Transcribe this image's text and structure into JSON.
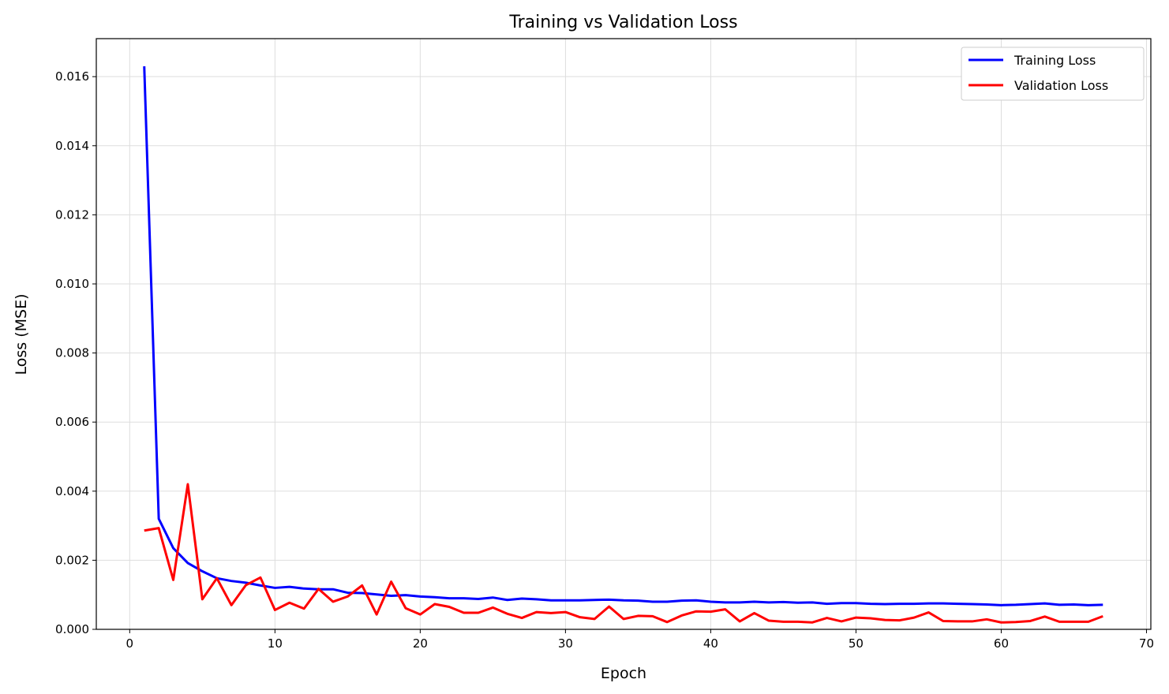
{
  "chart_data": {
    "type": "line",
    "title": "Training vs Validation Loss",
    "xlabel": "Epoch",
    "ylabel": "Loss (MSE)",
    "xlim": [
      -2.3,
      70.3
    ],
    "ylim": [
      0,
      0.0171
    ],
    "xticks": [
      0,
      10,
      20,
      30,
      40,
      50,
      60,
      70
    ],
    "yticks": [
      0.0,
      0.002,
      0.004,
      0.006,
      0.008,
      0.01,
      0.012,
      0.014,
      0.016
    ],
    "ytick_labels": [
      "0.000",
      "0.002",
      "0.004",
      "0.006",
      "0.008",
      "0.010",
      "0.012",
      "0.014",
      "0.016"
    ],
    "grid": true,
    "legend_position": "top-right",
    "x": [
      1,
      2,
      3,
      4,
      5,
      6,
      7,
      8,
      9,
      10,
      11,
      12,
      13,
      14,
      15,
      16,
      17,
      18,
      19,
      20,
      21,
      22,
      23,
      24,
      25,
      26,
      27,
      28,
      29,
      30,
      31,
      32,
      33,
      34,
      35,
      36,
      37,
      38,
      39,
      40,
      41,
      42,
      43,
      44,
      45,
      46,
      47,
      48,
      49,
      50,
      51,
      52,
      53,
      54,
      55,
      56,
      57,
      58,
      59,
      60,
      61,
      62,
      63,
      64,
      65,
      66,
      67
    ],
    "series": [
      {
        "name": "Training Loss",
        "color": "#0000ff",
        "values": [
          0.0163,
          0.0032,
          0.00235,
          0.00192,
          0.00168,
          0.00148,
          0.0014,
          0.00135,
          0.00127,
          0.0012,
          0.00123,
          0.00118,
          0.00116,
          0.00116,
          0.00106,
          0.00105,
          0.00101,
          0.00097,
          0.00099,
          0.00095,
          0.00093,
          0.0009,
          0.0009,
          0.00088,
          0.00092,
          0.00085,
          0.00089,
          0.00087,
          0.00084,
          0.00084,
          0.00084,
          0.00085,
          0.00086,
          0.00084,
          0.00083,
          0.0008,
          0.0008,
          0.00083,
          0.00084,
          0.0008,
          0.00078,
          0.00078,
          0.0008,
          0.00078,
          0.00079,
          0.00077,
          0.00078,
          0.00074,
          0.00076,
          0.00076,
          0.00074,
          0.00073,
          0.00074,
          0.00074,
          0.00075,
          0.00075,
          0.00074,
          0.00073,
          0.00072,
          0.0007,
          0.00071,
          0.00073,
          0.00075,
          0.00071,
          0.00072,
          0.0007,
          0.00071
        ]
      },
      {
        "name": "Validation Loss",
        "color": "#ff0000",
        "values": [
          0.00286,
          0.00293,
          0.00143,
          0.0042,
          0.00087,
          0.00148,
          0.0007,
          0.00128,
          0.0015,
          0.00056,
          0.00077,
          0.0006,
          0.00117,
          0.0008,
          0.00095,
          0.00127,
          0.00043,
          0.00138,
          0.00061,
          0.00043,
          0.00073,
          0.00065,
          0.00048,
          0.00048,
          0.00063,
          0.00045,
          0.00033,
          0.0005,
          0.00047,
          0.0005,
          0.00035,
          0.0003,
          0.00066,
          0.0003,
          0.00039,
          0.00038,
          0.00021,
          0.0004,
          0.00052,
          0.00051,
          0.00058,
          0.00023,
          0.00047,
          0.00025,
          0.00022,
          0.00022,
          0.0002,
          0.00033,
          0.00023,
          0.00034,
          0.00032,
          0.00027,
          0.00026,
          0.00034,
          0.00049,
          0.00024,
          0.00023,
          0.00023,
          0.00029,
          0.0002,
          0.00021,
          0.00024,
          0.00037,
          0.00022,
          0.00022,
          0.00022,
          0.00038
        ]
      }
    ]
  }
}
